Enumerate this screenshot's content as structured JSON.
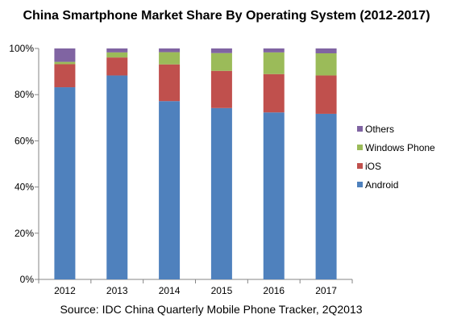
{
  "chart_data": {
    "type": "bar",
    "stacked": true,
    "title": "China Smartphone Market Share By Operating System (2012-2017)",
    "source": "Source: IDC China Quarterly Mobile Phone Tracker, 2Q2013",
    "categories": [
      "2012",
      "2013",
      "2014",
      "2015",
      "2016",
      "2017"
    ],
    "series": [
      {
        "name": "Android",
        "color": "#4f81bd",
        "values": [
          83.2,
          88.3,
          77.2,
          74.2,
          72.3,
          71.7
        ]
      },
      {
        "name": "iOS",
        "color": "#c0504d",
        "values": [
          10.0,
          7.8,
          15.9,
          16.1,
          16.6,
          16.6
        ]
      },
      {
        "name": "Windows Phone",
        "color": "#9bbb59",
        "values": [
          1.0,
          2.2,
          5.3,
          7.7,
          9.4,
          9.6
        ]
      },
      {
        "name": "Others",
        "color": "#8064a2",
        "values": [
          5.8,
          1.7,
          1.6,
          2.0,
          1.7,
          2.1
        ]
      }
    ],
    "y_ticks": [
      "0%",
      "20%",
      "40%",
      "60%",
      "80%",
      "100%"
    ],
    "ylim": [
      0,
      100
    ],
    "legend_position": "right",
    "legend_order": [
      "Others",
      "Windows Phone",
      "iOS",
      "Android"
    ],
    "grid": false
  }
}
